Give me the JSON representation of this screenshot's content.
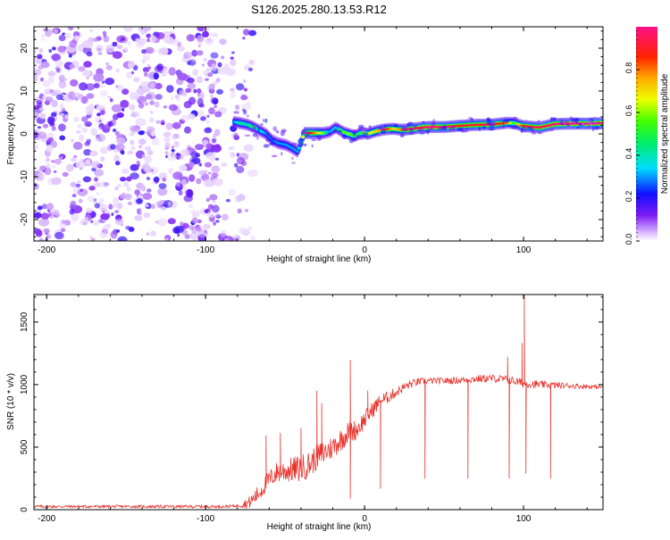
{
  "title": "S126.2025.280.13.53.R12",
  "chart_data": [
    {
      "type": "heatmap",
      "title": "S126.2025.280.13.53.R12",
      "xlabel": "Height of straight line (km)",
      "ylabel": "Frequency (Hz)",
      "xlim": [
        -208,
        150
      ],
      "ylim": [
        -25,
        25
      ],
      "xticks": [
        -200,
        -100,
        0,
        100
      ],
      "yticks": [
        -20,
        -10,
        0,
        10,
        20
      ],
      "colorbar": {
        "label": "Normalized spectral amplitude",
        "range": [
          0,
          1
        ],
        "ticks": [
          0.0,
          0.2,
          0.4,
          0.6,
          0.8
        ],
        "tick_labels": [
          "0.0",
          "0.2",
          "0.4",
          "0.6",
          "0.8"
        ]
      },
      "noise_region": {
        "x_from": -208,
        "x_to": -80,
        "y_from": -25,
        "y_to": 25,
        "amplitude": [
          0.02,
          0.2
        ]
      },
      "ridge": {
        "x": [
          -82,
          -78,
          -74,
          -70,
          -66,
          -62,
          -58,
          -54,
          -50,
          -46,
          -42,
          -38,
          -34,
          -30,
          -26,
          -22,
          -18,
          -14,
          -10,
          -6,
          -2,
          2,
          6,
          10,
          14,
          18,
          22,
          26,
          30,
          34,
          40,
          50,
          60,
          70,
          80,
          90,
          94,
          100,
          110,
          120,
          130,
          140,
          150
        ],
        "freq": [
          2.8,
          2.5,
          2.2,
          1.6,
          0.8,
          0.0,
          -1.5,
          -2.2,
          -2.5,
          -3.2,
          -4.2,
          0.2,
          0.2,
          0.2,
          0.2,
          0.5,
          1.5,
          0.5,
          0.0,
          -0.5,
          0.3,
          0.0,
          0.5,
          0.9,
          1.1,
          1.2,
          1.0,
          1.0,
          1.2,
          1.4,
          1.6,
          1.6,
          1.9,
          2.1,
          2.2,
          2.6,
          2.5,
          1.8,
          1.5,
          2.3,
          2.4,
          2.4,
          2.5
        ],
        "amplitude": [
          0.3,
          0.45,
          0.4,
          0.5,
          0.35,
          0.3,
          0.25,
          0.3,
          0.3,
          0.3,
          0.3,
          0.75,
          0.9,
          0.75,
          0.6,
          0.3,
          0.35,
          0.55,
          0.6,
          0.5,
          0.5,
          0.6,
          0.7,
          0.75,
          0.9,
          0.7,
          0.75,
          0.9,
          0.95,
          0.95,
          0.98,
          0.95,
          0.9,
          0.9,
          0.95,
          0.8,
          0.5,
          0.9,
          0.95,
          0.98,
          0.99,
          0.99,
          0.99
        ]
      }
    },
    {
      "type": "line",
      "xlabel": "Height of straight line (km)",
      "ylabel": "SNR (10 * v/v)",
      "xlim": [
        -208,
        150
      ],
      "ylim": [
        0,
        1720
      ],
      "xticks": [
        -200,
        -100,
        0,
        100
      ],
      "yticks": [
        0,
        500,
        1000,
        1500
      ],
      "color": "#e8322c",
      "baseline": {
        "x": [
          -208,
          -140,
          -90,
          -80,
          -72,
          -66,
          -60,
          -55,
          -50,
          -45,
          -40,
          -35,
          -30,
          -25,
          -20,
          -15,
          -10,
          -5,
          0,
          5,
          10,
          15,
          20,
          25,
          30,
          35,
          40,
          50,
          60,
          70,
          80,
          90,
          95,
          100,
          110,
          120,
          130,
          140,
          150
        ],
        "y": [
          25,
          25,
          25,
          30,
          60,
          140,
          240,
          300,
          310,
          320,
          330,
          360,
          420,
          460,
          500,
          560,
          620,
          640,
          720,
          800,
          870,
          900,
          940,
          980,
          1010,
          1025,
          1030,
          1030,
          1035,
          1045,
          1050,
          1040,
          1025,
          1010,
          1000,
          995,
          990,
          985,
          980
        ]
      },
      "noise": {
        "x": [
          -208,
          -80,
          -70,
          -40,
          -10,
          20,
          40,
          100,
          150
        ],
        "amplitude": [
          12,
          12,
          60,
          110,
          90,
          40,
          25,
          35,
          14
        ]
      },
      "spikes": [
        {
          "x": -62,
          "y": 590
        },
        {
          "x": -53,
          "y": 610
        },
        {
          "x": -40,
          "y": 650
        },
        {
          "x": -30,
          "y": 950
        },
        {
          "x": -27,
          "y": 850
        },
        {
          "x": -9,
          "y": 1195
        },
        {
          "x": -9,
          "y": 90
        },
        {
          "x": 2,
          "y": 950
        },
        {
          "x": 10,
          "y": 170
        },
        {
          "x": 38,
          "y": 250
        },
        {
          "x": 65,
          "y": 250
        },
        {
          "x": 90,
          "y": 1220
        },
        {
          "x": 91,
          "y": 250
        },
        {
          "x": 99,
          "y": 1330
        },
        {
          "x": 100.5,
          "y": 1720
        },
        {
          "x": 101.5,
          "y": 290
        },
        {
          "x": 117,
          "y": 250
        }
      ]
    }
  ]
}
